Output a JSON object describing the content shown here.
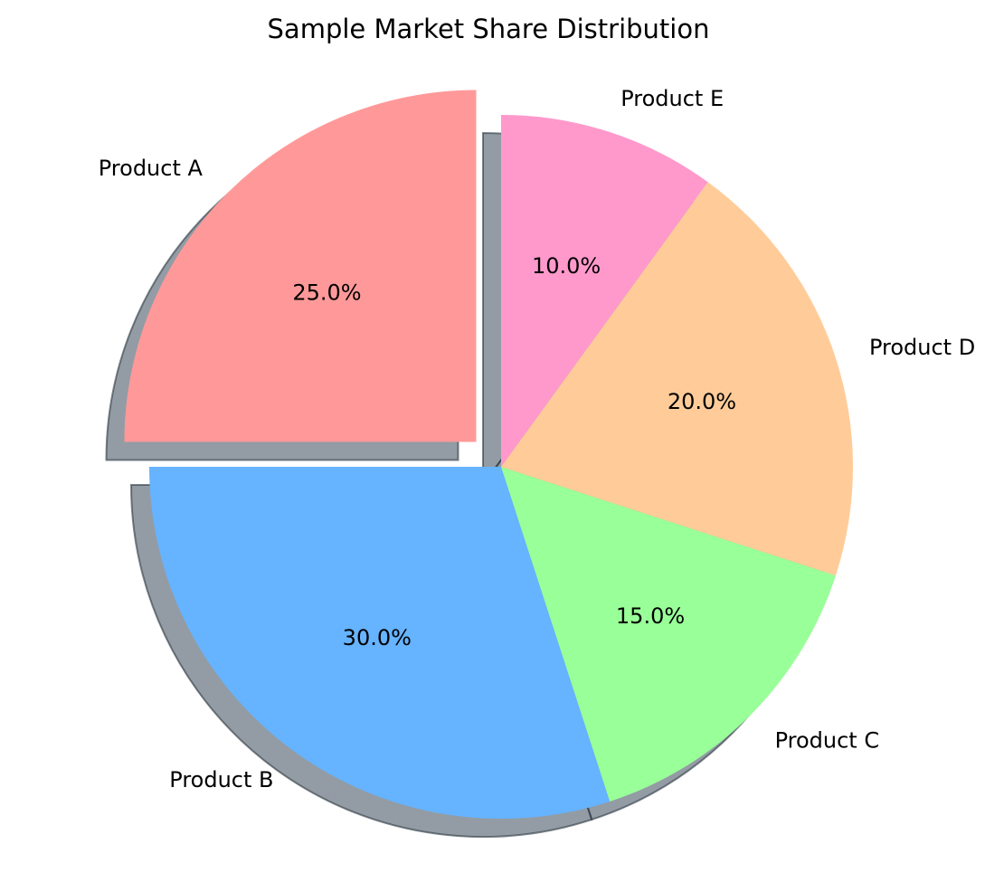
{
  "chart_data": {
    "type": "pie",
    "title": "Sample Market Share Distribution",
    "categories": [
      "Product A",
      "Product B",
      "Product C",
      "Product D",
      "Product E"
    ],
    "values": [
      25,
      30,
      15,
      20,
      10
    ],
    "value_labels": [
      "25.0%",
      "30.0%",
      "15.0%",
      "20.0%",
      "10.0%"
    ],
    "colors": [
      "#ff9999",
      "#66b3ff",
      "#99ff99",
      "#ffcc99",
      "#ff99cc"
    ],
    "start_angle_deg": 90,
    "direction": "counterclockwise",
    "exploded": [
      "Product A"
    ],
    "shadow": true
  }
}
